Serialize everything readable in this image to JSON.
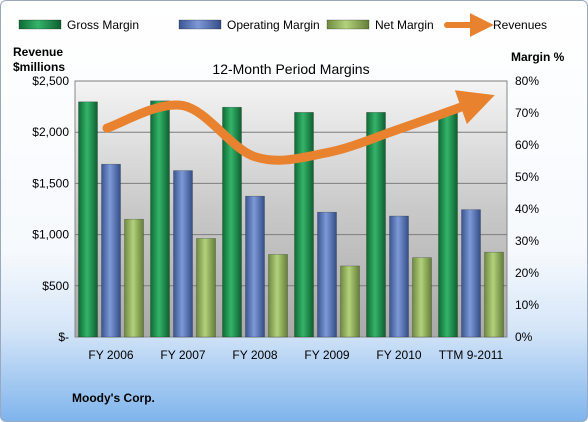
{
  "chart_data": {
    "type": "bar",
    "title": "12-Month Period Margins",
    "categories": [
      "FY 2006",
      "FY 2007",
      "FY 2008",
      "FY 2009",
      "FY 2010",
      "TTM 9-2011"
    ],
    "left_axis": {
      "label_line1": "Revenue",
      "label_line2": "$millions",
      "ylim": [
        0,
        2500
      ],
      "ticks": [
        0,
        500,
        1000,
        1500,
        2000,
        2500
      ],
      "tick_labels": [
        "$-",
        "$500",
        "$1,000",
        "$1,500",
        "$2,000",
        "$2,500"
      ]
    },
    "right_axis": {
      "label": "Margin %",
      "ylim": [
        0,
        80
      ],
      "ticks": [
        0,
        10,
        20,
        30,
        40,
        50,
        60,
        70,
        80
      ],
      "tick_labels": [
        "0%",
        "10%",
        "20%",
        "30%",
        "40%",
        "50%",
        "60%",
        "70%",
        "80%"
      ]
    },
    "series": [
      {
        "name": "Gross Margin",
        "axis": "right",
        "kind": "bar",
        "color": "#1f8a4c",
        "values": [
          73.5,
          73.8,
          71.8,
          70.2,
          70.2,
          70.1
        ]
      },
      {
        "name": "Operating Margin",
        "axis": "right",
        "kind": "bar",
        "color": "#4f6fb5",
        "values": [
          54.0,
          52.0,
          44.0,
          39.0,
          37.8,
          39.8
        ]
      },
      {
        "name": "Net Margin",
        "axis": "right",
        "kind": "bar",
        "color": "#8fb159",
        "values": [
          36.8,
          30.8,
          25.8,
          22.2,
          24.8,
          26.5
        ]
      },
      {
        "name": "Revenues",
        "axis": "left",
        "kind": "line",
        "color": "#e8822e",
        "values": [
          2040,
          2260,
          1760,
          1800,
          2030,
          2280
        ]
      }
    ],
    "grid": true,
    "legend_position": "top"
  },
  "footer": {
    "company": "Moody's Corp."
  }
}
